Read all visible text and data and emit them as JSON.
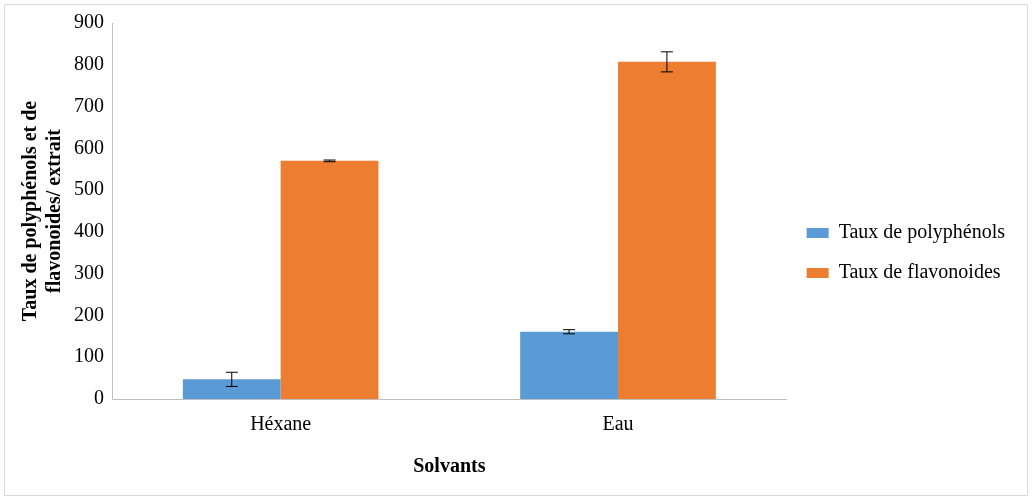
{
  "chart_data": {
    "type": "bar",
    "xlabel": "Solvants",
    "ylabel": "Taux de polyphénols et de flavonoides/ extrait",
    "categories": [
      "Héxane",
      "Eau"
    ],
    "series": [
      {
        "name": "Taux de polyphénols",
        "color": "#5b9bd5",
        "values": [
          47,
          161
        ],
        "errors": [
          17,
          5
        ]
      },
      {
        "name": "Taux de flavonoides",
        "color": "#ed7d31",
        "values": [
          570,
          807
        ],
        "errors": [
          2,
          24
        ]
      }
    ],
    "ylim": [
      0,
      900
    ],
    "yticks": [
      0,
      100,
      200,
      300,
      400,
      500,
      600,
      700,
      800,
      900
    ],
    "grid": false,
    "legend": "right"
  }
}
